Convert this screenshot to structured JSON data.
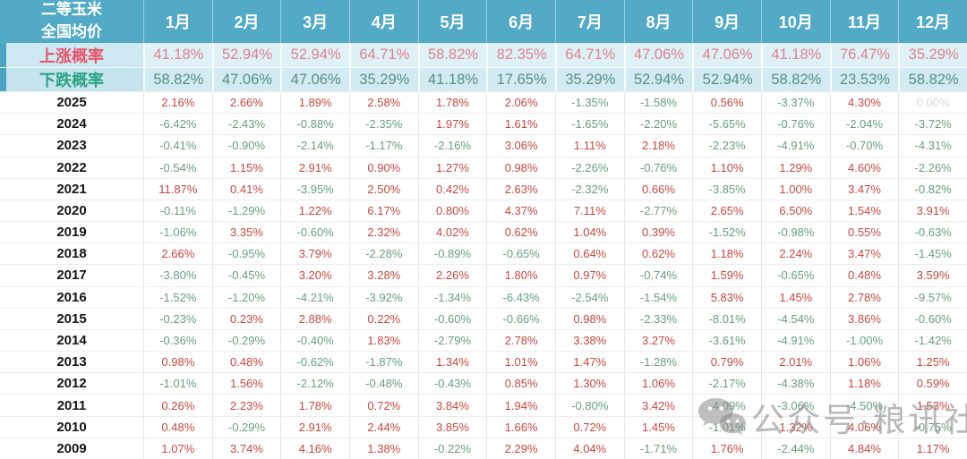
{
  "header": {
    "title_lines": [
      "二等玉米",
      "全国均价"
    ]
  },
  "chart_data": {
    "type": "table",
    "title": "二等玉米 全国均价",
    "columns": [
      "1月",
      "2月",
      "3月",
      "4月",
      "5月",
      "6月",
      "7月",
      "8月",
      "9月",
      "10月",
      "11月",
      "12月"
    ],
    "rows": [
      {
        "label": "上涨概率",
        "kind": "rise",
        "values": [
          "41.18%",
          "52.94%",
          "52.94%",
          "64.71%",
          "58.82%",
          "82.35%",
          "64.71%",
          "47.06%",
          "47.06%",
          "41.18%",
          "76.47%",
          "35.29%"
        ]
      },
      {
        "label": "下跌概率",
        "kind": "fall",
        "values": [
          "58.82%",
          "47.06%",
          "47.06%",
          "35.29%",
          "41.18%",
          "17.65%",
          "35.29%",
          "52.94%",
          "52.94%",
          "58.82%",
          "23.53%",
          "58.82%"
        ]
      },
      {
        "label": "2025",
        "kind": "year",
        "values": [
          "2.16%",
          "2.66%",
          "1.89%",
          "2.58%",
          "1.78%",
          "2.06%",
          "-1.35%",
          "-1.58%",
          "0.56%",
          "-3.37%",
          "4.30%",
          "0.00%"
        ]
      },
      {
        "label": "2024",
        "kind": "year",
        "values": [
          "-6.42%",
          "-2.43%",
          "-0.88%",
          "-2.35%",
          "1.97%",
          "1.61%",
          "-1.65%",
          "-2.20%",
          "-5.65%",
          "-0.76%",
          "-2.04%",
          "-3.72%"
        ]
      },
      {
        "label": "2023",
        "kind": "year",
        "values": [
          "-0.41%",
          "-0.90%",
          "-2.14%",
          "-1.17%",
          "-2.16%",
          "3.06%",
          "1.11%",
          "2.18%",
          "-2.23%",
          "-4.91%",
          "-0.70%",
          "-4.31%"
        ]
      },
      {
        "label": "2022",
        "kind": "year",
        "values": [
          "-0.54%",
          "1.15%",
          "2.91%",
          "0.90%",
          "1.27%",
          "0.98%",
          "-2.26%",
          "-0.76%",
          "1.10%",
          "1.29%",
          "4.60%",
          "-2.26%"
        ]
      },
      {
        "label": "2021",
        "kind": "year",
        "values": [
          "11.87%",
          "0.41%",
          "-3.95%",
          "2.50%",
          "0.42%",
          "2.63%",
          "-2.32%",
          "0.66%",
          "-3.85%",
          "1.00%",
          "3.47%",
          "-0.82%"
        ]
      },
      {
        "label": "2020",
        "kind": "year",
        "values": [
          "-0.11%",
          "-1.29%",
          "1.22%",
          "6.17%",
          "0.80%",
          "4.37%",
          "7.11%",
          "-2.77%",
          "2.65%",
          "6.50%",
          "1.54%",
          "3.91%"
        ]
      },
      {
        "label": "2019",
        "kind": "year",
        "values": [
          "-1.06%",
          "3.35%",
          "-0.60%",
          "2.32%",
          "4.02%",
          "0.62%",
          "1.04%",
          "0.39%",
          "-1.52%",
          "-0.98%",
          "0.55%",
          "-0.63%"
        ]
      },
      {
        "label": "2018",
        "kind": "year",
        "values": [
          "2.66%",
          "-0.95%",
          "3.79%",
          "-2.28%",
          "-0.89%",
          "-0.65%",
          "0.64%",
          "0.62%",
          "1.18%",
          "2.24%",
          "3.47%",
          "-1.45%"
        ]
      },
      {
        "label": "2017",
        "kind": "year",
        "values": [
          "-3.80%",
          "-0.45%",
          "3.20%",
          "3.28%",
          "2.26%",
          "1.80%",
          "0.97%",
          "-0.74%",
          "1.59%",
          "-0.65%",
          "0.48%",
          "3.59%"
        ]
      },
      {
        "label": "2016",
        "kind": "year",
        "values": [
          "-1.52%",
          "-1.20%",
          "-4.21%",
          "-3.92%",
          "-1.34%",
          "-6.43%",
          "-2.54%",
          "-1.54%",
          "5.83%",
          "1.45%",
          "2.78%",
          "-9.57%"
        ]
      },
      {
        "label": "2015",
        "kind": "year",
        "values": [
          "-0.23%",
          "0.23%",
          "2.88%",
          "0.22%",
          "-0.60%",
          "-0.66%",
          "0.98%",
          "-2.33%",
          "-8.01%",
          "-4.54%",
          "3.86%",
          "-0.60%"
        ]
      },
      {
        "label": "2014",
        "kind": "year",
        "values": [
          "-0.36%",
          "-0.29%",
          "-0.40%",
          "1.83%",
          "-2.79%",
          "2.78%",
          "3.38%",
          "3.27%",
          "-3.61%",
          "-4.91%",
          "-1.00%",
          "-1.42%"
        ]
      },
      {
        "label": "2013",
        "kind": "year",
        "values": [
          "0.98%",
          "0.48%",
          "-0.62%",
          "-1.87%",
          "1.34%",
          "1.01%",
          "1.47%",
          "-1.28%",
          "0.79%",
          "2.01%",
          "1.06%",
          "1.25%"
        ]
      },
      {
        "label": "2012",
        "kind": "year",
        "values": [
          "-1.01%",
          "1.56%",
          "-2.12%",
          "-0.48%",
          "-0.43%",
          "0.85%",
          "1.30%",
          "1.06%",
          "-2.17%",
          "-4.38%",
          "1.18%",
          "0.59%"
        ]
      },
      {
        "label": "2011",
        "kind": "year",
        "values": [
          "0.26%",
          "2.23%",
          "1.78%",
          "0.72%",
          "3.84%",
          "1.94%",
          "-0.80%",
          "3.42%",
          "-4.09%",
          "-3.06%",
          "-4.50%",
          "1.53%"
        ]
      },
      {
        "label": "2010",
        "kind": "year",
        "values": [
          "0.48%",
          "-0.29%",
          "2.91%",
          "2.44%",
          "3.85%",
          "1.66%",
          "0.72%",
          "1.45%",
          "-1.01%",
          "1.32%",
          "4.06%",
          "-0.75%"
        ]
      },
      {
        "label": "2009",
        "kind": "year",
        "values": [
          "1.07%",
          "3.74%",
          "4.16%",
          "1.38%",
          "-0.22%",
          "2.29%",
          "4.04%",
          "-1.71%",
          "1.76%",
          "-2.44%",
          "4.84%",
          "1.17%"
        ]
      }
    ]
  },
  "watermark": {
    "text": "公众号·粮讯社",
    "icon": "wechat-icon"
  },
  "colors": {
    "header_bg": "#53AAC6",
    "prob_strip": "#4BA3C2",
    "rise_label": "#E7566B",
    "rise_value": "#E2808F",
    "fall_label": "#2DA385",
    "fall_value": "#569180",
    "positive": "#C7483F",
    "negative": "#679F7C",
    "zero_muted": "#D8D8D8"
  }
}
